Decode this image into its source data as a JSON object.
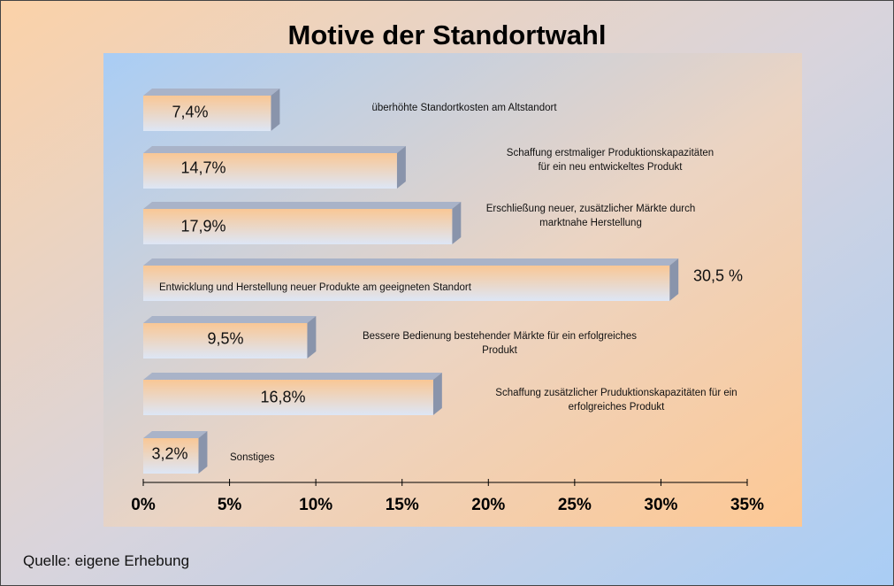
{
  "chart_data": {
    "type": "bar",
    "orientation": "horizontal",
    "title": "Motive der Standortwahl",
    "categories": [
      "überhöhte Standortkosten am Altstandort",
      "Schaffung erstmaliger Produktionskapazitäten\nfür ein neu entwickeltes Produkt",
      "Erschließung neuer, zusätzlicher Märkte durch\nmarktnahe Herstellung",
      "Entwicklung und Herstellung neuer Produkte am geeigneten Standort",
      "Bessere Bedienung bestehender Märkte für ein erfolgreiches\nProdukt",
      "Schaffung zusätzlicher Pruduktionskapazitäten für ein\nerfolgreiches Produkt",
      "Sonstiges"
    ],
    "values": [
      7.4,
      14.7,
      17.9,
      30.5,
      9.5,
      16.8,
      3.2
    ],
    "value_labels": [
      "7,4%",
      "14,7%",
      "17,9%",
      "30,5 %",
      "9,5%",
      "16,8%",
      "3,2%"
    ],
    "xlim": [
      0,
      35
    ],
    "xticks": [
      {
        "value": 0,
        "label": "0%"
      },
      {
        "value": 5,
        "label": "5%"
      },
      {
        "value": 10,
        "label": "10%"
      },
      {
        "value": 15,
        "label": "15%"
      },
      {
        "value": 20,
        "label": "20%"
      },
      {
        "value": 25,
        "label": "25%"
      },
      {
        "value": 30,
        "label": "30%"
      },
      {
        "value": 35,
        "label": "35%"
      }
    ],
    "source": "Quelle: eigene Erhebung"
  }
}
